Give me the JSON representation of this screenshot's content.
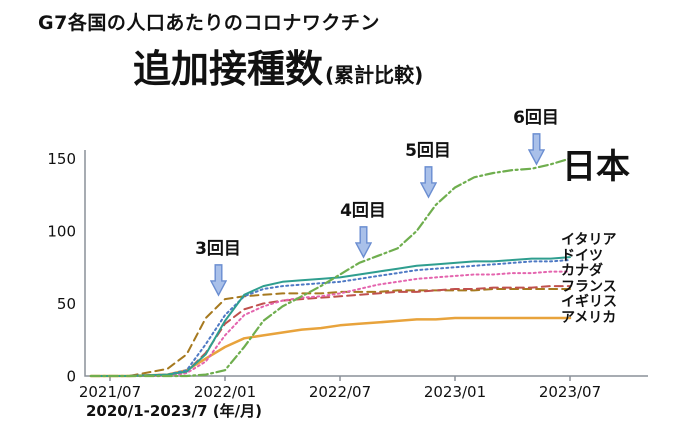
{
  "title": {
    "line1": "G7各国の人口あたりのコロナワクチン",
    "main": "追加接種数",
    "sub": "(累計比較)"
  },
  "axis_caption": "2020/1-2023/7 (年/月)",
  "annotations": [
    "3回目",
    "4回目",
    "5回目",
    "6回目"
  ],
  "arrow": {
    "fill": "#a9c0e9",
    "stroke": "#6b8ed1"
  },
  "axis_color": "#8a9099",
  "chart_data": {
    "type": "line",
    "title": "G7各国の人口あたりのコロナワクチン追加接種数(累計比較)",
    "xlabel": "2020/1-2023/7 (年/月)",
    "ylabel": "",
    "ylim": [
      0,
      160
    ],
    "grid": false,
    "legend_position": "right",
    "xticks": [
      "2021/07",
      "2022/01",
      "2022/07",
      "2023/01",
      "2023/07"
    ],
    "yticks": [
      0,
      50,
      100,
      150
    ],
    "x": [
      "2021/06",
      "2021/08",
      "2021/10",
      "2021/11",
      "2021/12",
      "2022/01",
      "2022/02",
      "2022/03",
      "2022/04",
      "2022/05",
      "2022/06",
      "2022/07",
      "2022/08",
      "2022/09",
      "2022/10",
      "2022/11",
      "2022/12",
      "2023/01",
      "2023/02",
      "2023/03",
      "2023/04",
      "2023/05",
      "2023/06",
      "2023/07"
    ],
    "series": [
      {
        "key": "japan",
        "label": "日本",
        "color": "#6fae4e",
        "style": "dashdot",
        "width": 2.2,
        "values": [
          0,
          0,
          0,
          0,
          1,
          4,
          20,
          38,
          48,
          55,
          62,
          70,
          78,
          83,
          88,
          100,
          118,
          130,
          137,
          140,
          142,
          143,
          146,
          150
        ]
      },
      {
        "key": "italy",
        "label": "イタリア",
        "color": "#2f9e8f",
        "style": "solid",
        "width": 2,
        "values": [
          0,
          0,
          1,
          3,
          15,
          38,
          56,
          62,
          65,
          66,
          67,
          68,
          70,
          72,
          74,
          76,
          77,
          78,
          79,
          79,
          80,
          81,
          81,
          82
        ]
      },
      {
        "key": "germany",
        "label": "ドイツ",
        "color": "#4e79c4",
        "style": "dot",
        "width": 2,
        "values": [
          0,
          0,
          1,
          4,
          22,
          42,
          55,
          60,
          62,
          63,
          64,
          65,
          67,
          69,
          71,
          73,
          74,
          75,
          76,
          77,
          78,
          79,
          79,
          80
        ]
      },
      {
        "key": "canada",
        "label": "カナダ",
        "color": "#e464ae",
        "style": "dot",
        "width": 2,
        "values": [
          0,
          0,
          0,
          2,
          10,
          28,
          42,
          48,
          52,
          54,
          55,
          57,
          60,
          63,
          65,
          67,
          68,
          69,
          70,
          70,
          71,
          71,
          72,
          72
        ]
      },
      {
        "key": "france",
        "label": "フランス",
        "color": "#c0504d",
        "style": "dash",
        "width": 2,
        "values": [
          0,
          0,
          1,
          3,
          16,
          36,
          46,
          50,
          52,
          53,
          54,
          55,
          56,
          57,
          58,
          58,
          59,
          60,
          60,
          61,
          61,
          61,
          62,
          62
        ]
      },
      {
        "key": "uk",
        "label": "イギリス",
        "color": "#a6791f",
        "style": "dash",
        "width": 2,
        "values": [
          0,
          0,
          5,
          15,
          40,
          53,
          55,
          56,
          57,
          57,
          57,
          58,
          58,
          58,
          59,
          59,
          59,
          59,
          59,
          60,
          60,
          60,
          60,
          60
        ]
      },
      {
        "key": "usa",
        "label": "アメリカ",
        "color": "#e8a33c",
        "style": "solid",
        "width": 2.5,
        "values": [
          0,
          0,
          1,
          4,
          12,
          20,
          26,
          28,
          30,
          32,
          33,
          35,
          36,
          37,
          38,
          39,
          39,
          40,
          40,
          40,
          40,
          40,
          40,
          40
        ]
      }
    ]
  }
}
